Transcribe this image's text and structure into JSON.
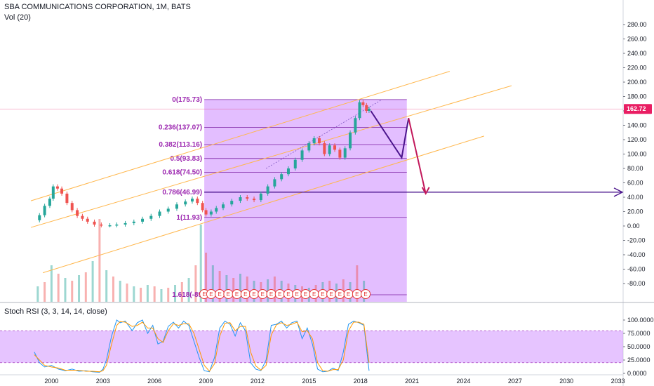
{
  "header": {
    "title": "SBA COMMUNICATIONS CORPORATION, 1M, BATS",
    "volume_label": "Vol (20)"
  },
  "colors": {
    "up": "#26a69a",
    "down": "#ef5350",
    "fib_fill": "#c77dff",
    "channel": "#ffb74d",
    "price_badge": "#e91e63",
    "stoch_k": "#2196f3",
    "stoch_d": "#ff9800",
    "arrow_dark": "#4a148c"
  },
  "chart_data": [
    {
      "type": "candlestick",
      "title": "SBA COMMUNICATIONS CORPORATION, 1M, BATS",
      "x_ticks": [
        "2000",
        "2003",
        "2006",
        "2009",
        "2012",
        "2015",
        "2018",
        "2021",
        "2024",
        "2027",
        "2030",
        "2033"
      ],
      "y_ticks": [
        "280.00",
        "260.00",
        "240.00",
        "220.00",
        "200.00",
        "180.00",
        "160.00",
        "140.00",
        "120.00",
        "100.00",
        "80.00",
        "60.00",
        "40.00",
        "20.00",
        "0.00",
        "-20.00",
        "-40.00",
        "-60.00",
        "-80.00"
      ],
      "ylim": [
        -100,
        290
      ],
      "last_price": "162.72",
      "price_path": [
        [
          1999.0,
          8
        ],
        [
          1999.3,
          15
        ],
        [
          1999.6,
          28
        ],
        [
          1999.9,
          38
        ],
        [
          2000.1,
          55
        ],
        [
          2000.35,
          52
        ],
        [
          2000.6,
          45
        ],
        [
          2000.9,
          32
        ],
        [
          2001.2,
          22
        ],
        [
          2001.5,
          14
        ],
        [
          2001.8,
          10
        ],
        [
          2002.1,
          6
        ],
        [
          2002.5,
          2
        ],
        [
          2002.9,
          1
        ],
        [
          2003.4,
          1
        ],
        [
          2003.8,
          2
        ],
        [
          2004.3,
          4
        ],
        [
          2004.8,
          6
        ],
        [
          2005.3,
          10
        ],
        [
          2005.8,
          14
        ],
        [
          2006.3,
          20
        ],
        [
          2006.8,
          24
        ],
        [
          2007.3,
          30
        ],
        [
          2007.8,
          34
        ],
        [
          2008.2,
          38
        ],
        [
          2008.5,
          32
        ],
        [
          2008.8,
          22
        ],
        [
          2009.0,
          16
        ],
        [
          2009.3,
          20
        ],
        [
          2009.6,
          25
        ],
        [
          2010.0,
          30
        ],
        [
          2010.5,
          35
        ],
        [
          2011.0,
          40
        ],
        [
          2011.4,
          38
        ],
        [
          2011.8,
          36
        ],
        [
          2012.2,
          45
        ],
        [
          2012.6,
          55
        ],
        [
          2013.0,
          65
        ],
        [
          2013.4,
          72
        ],
        [
          2013.8,
          80
        ],
        [
          2014.2,
          92
        ],
        [
          2014.6,
          105
        ],
        [
          2015.0,
          115
        ],
        [
          2015.3,
          122
        ],
        [
          2015.6,
          115
        ],
        [
          2015.9,
          100
        ],
        [
          2016.2,
          112
        ],
        [
          2016.5,
          106
        ],
        [
          2016.8,
          95
        ],
        [
          2017.1,
          108
        ],
        [
          2017.4,
          130
        ],
        [
          2017.7,
          150
        ],
        [
          2017.95,
          172
        ],
        [
          2018.15,
          168
        ],
        [
          2018.35,
          160
        ],
        [
          2018.5,
          163
        ]
      ],
      "fib_levels": [
        {
          "label": "0(175.73)",
          "value": 175.73
        },
        {
          "label": "0.236(137.07)",
          "value": 137.07
        },
        {
          "label": "0.382(113.16)",
          "value": 113.16
        },
        {
          "label": "0.5(93.83)",
          "value": 93.83
        },
        {
          "label": "0.618(74.50)",
          "value": 74.5
        },
        {
          "label": "0.786(46.99)",
          "value": 46.99
        },
        {
          "label": "1(11.93)",
          "value": 11.93
        },
        {
          "label": "1.618(-89",
          "value": -89
        }
      ],
      "fib_x_range": [
        2008.9,
        2020.7
      ],
      "horizontal_line": 46.99,
      "earnings_marker": "E",
      "earnings_x": [
        2008.9,
        2009.3,
        2009.8,
        2010.3,
        2010.8,
        2011.3,
        2011.8,
        2012.3,
        2012.8,
        2013.3,
        2013.8,
        2014.3,
        2014.8,
        2015.3,
        2015.8,
        2016.3,
        2016.8,
        2017.3,
        2017.8,
        2018.3
      ],
      "channels": [
        {
          "x": [
            1998.8,
            2023.2
          ],
          "y": [
            35,
            215
          ]
        },
        {
          "x": [
            1998.8,
            2026.8
          ],
          "y": [
            -2,
            195
          ]
        },
        {
          "x": [
            1999.5,
            2025.2
          ],
          "y": [
            -65,
            125
          ]
        }
      ],
      "projection_up": {
        "x": [
          2018.6,
          2020.4,
          2020.8
        ],
        "y": [
          160,
          95,
          150
        ]
      },
      "projection_down": {
        "x": [
          2020.8,
          2021.8
        ],
        "y": [
          150,
          45
        ]
      },
      "volume_bars": [
        [
          1999.2,
          22
        ],
        [
          1999.6,
          28
        ],
        [
          2000.0,
          52
        ],
        [
          2000.4,
          40
        ],
        [
          2000.8,
          34
        ],
        [
          2001.2,
          30
        ],
        [
          2001.6,
          38
        ],
        [
          2002.0,
          42
        ],
        [
          2002.4,
          58
        ],
        [
          2002.8,
          118
        ],
        [
          2003.2,
          45
        ],
        [
          2003.6,
          36
        ],
        [
          2004.0,
          30
        ],
        [
          2004.4,
          26
        ],
        [
          2004.8,
          22
        ],
        [
          2005.2,
          20
        ],
        [
          2005.6,
          24
        ],
        [
          2006.0,
          22
        ],
        [
          2006.4,
          18
        ],
        [
          2006.8,
          20
        ],
        [
          2007.2,
          24
        ],
        [
          2007.6,
          28
        ],
        [
          2008.0,
          34
        ],
        [
          2008.4,
          52
        ],
        [
          2008.7,
          110
        ],
        [
          2009.0,
          70
        ],
        [
          2009.4,
          52
        ],
        [
          2009.8,
          44
        ],
        [
          2010.2,
          38
        ],
        [
          2010.6,
          34
        ],
        [
          2011.0,
          40
        ],
        [
          2011.4,
          36
        ],
        [
          2011.8,
          30
        ],
        [
          2012.2,
          28
        ],
        [
          2012.6,
          32
        ],
        [
          2013.0,
          36
        ],
        [
          2013.4,
          30
        ],
        [
          2013.8,
          26
        ],
        [
          2014.2,
          24
        ],
        [
          2014.6,
          22
        ],
        [
          2015.0,
          20
        ],
        [
          2015.4,
          24
        ],
        [
          2015.8,
          28
        ],
        [
          2016.2,
          30
        ],
        [
          2016.6,
          26
        ],
        [
          2017.0,
          32
        ],
        [
          2017.4,
          28
        ],
        [
          2017.8,
          52
        ],
        [
          2018.2,
          30
        ]
      ]
    },
    {
      "type": "line",
      "title": "Stoch RSI (3, 3, 14, 14, close)",
      "y_ticks": [
        "100.0000",
        "75.0000",
        "50.0000",
        "25.0000",
        "0.0000"
      ],
      "ylim": [
        0,
        100
      ],
      "band": [
        20,
        80
      ],
      "series": [
        {
          "x": [
            1999.0,
            1999.3,
            1999.6,
            2000.0,
            2000.4,
            2000.8,
            2001.2,
            2001.6,
            2002.0,
            2002.4,
            2002.8,
            2003.0,
            2003.2,
            2003.5,
            2003.8,
            2004.0,
            2004.3,
            2004.7,
            2005.0,
            2005.3,
            2005.6,
            2005.9,
            2006.2,
            2006.5,
            2006.8,
            2007.1,
            2007.4,
            2007.7,
            2008.0,
            2008.3,
            2008.6,
            2008.9,
            2009.2,
            2009.5,
            2009.8,
            2010.1,
            2010.4,
            2010.7,
            2011.0,
            2011.3,
            2011.6,
            2011.9,
            2012.2,
            2012.5,
            2012.8,
            2013.1,
            2013.4,
            2013.7,
            2014.0,
            2014.3,
            2014.6,
            2014.9,
            2015.2,
            2015.5,
            2015.8,
            2016.1,
            2016.4,
            2016.7,
            2017.0,
            2017.3,
            2017.6,
            2017.9,
            2018.2,
            2018.5
          ],
          "y": [
            40,
            20,
            12,
            15,
            8,
            5,
            8,
            4,
            5,
            3,
            2,
            8,
            25,
            70,
            100,
            95,
            98,
            80,
            95,
            100,
            75,
            90,
            55,
            60,
            88,
            96,
            85,
            98,
            90,
            60,
            30,
            5,
            3,
            30,
            85,
            98,
            92,
            70,
            95,
            80,
            20,
            8,
            5,
            25,
            90,
            92,
            98,
            85,
            95,
            98,
            65,
            85,
            55,
            8,
            3,
            4,
            10,
            5,
            40,
            92,
            98,
            95,
            90,
            5
          ]
        },
        {
          "x": [
            1999.0,
            1999.3,
            1999.6,
            2000.0,
            2000.4,
            2000.8,
            2001.2,
            2001.6,
            2002.0,
            2002.4,
            2002.8,
            2003.0,
            2003.2,
            2003.5,
            2003.8,
            2004.0,
            2004.3,
            2004.7,
            2005.0,
            2005.3,
            2005.6,
            2005.9,
            2006.2,
            2006.5,
            2006.8,
            2007.1,
            2007.4,
            2007.7,
            2008.0,
            2008.3,
            2008.6,
            2008.9,
            2009.2,
            2009.5,
            2009.8,
            2010.1,
            2010.4,
            2010.7,
            2011.0,
            2011.3,
            2011.6,
            2011.9,
            2012.2,
            2012.5,
            2012.8,
            2013.1,
            2013.4,
            2013.7,
            2014.0,
            2014.3,
            2014.6,
            2014.9,
            2015.2,
            2015.5,
            2015.8,
            2016.1,
            2016.4,
            2016.7,
            2017.0,
            2017.3,
            2017.6,
            2017.9,
            2018.2,
            2018.5
          ],
          "y": [
            35,
            25,
            15,
            12,
            10,
            6,
            6,
            6,
            4,
            4,
            3,
            5,
            15,
            55,
            90,
            97,
            96,
            88,
            90,
            96,
            85,
            85,
            65,
            58,
            80,
            93,
            90,
            93,
            93,
            75,
            45,
            15,
            4,
            18,
            70,
            94,
            95,
            80,
            88,
            88,
            40,
            14,
            6,
            15,
            72,
            91,
            95,
            90,
            92,
            96,
            78,
            80,
            65,
            20,
            5,
            4,
            7,
            7,
            25,
            80,
            96,
            96,
            92,
            20
          ]
        }
      ]
    }
  ]
}
